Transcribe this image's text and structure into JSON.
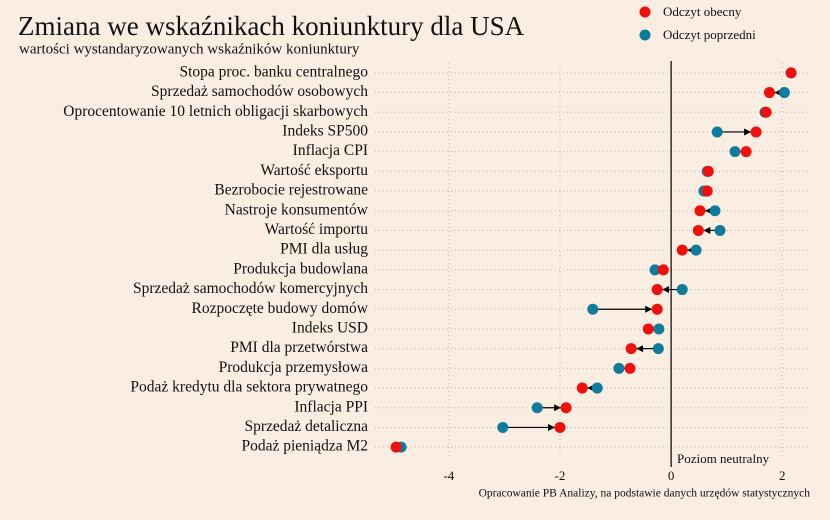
{
  "chart_data": {
    "type": "dumbbell",
    "title": "Zmiana we wskaźnikach koniunktury dla USA",
    "subtitle": "wartości wystandaryzowanych wskaźników koniunktury",
    "categories": [
      "Stopa proc. banku centralnego",
      "Sprzedaż samochodów osobowych",
      "Oprocentowanie 10 letnich obligacji skarbowych",
      "Indeks SP500",
      "Inflacja CPI",
      "Wartość eksportu",
      "Bezrobocie rejestrowane",
      "Nastroje konsumentów",
      "Wartość importu",
      "PMI dla usług",
      "Produkcja budowlana",
      "Sprzedaż samochodów komercyjnych",
      "Rozpoczęte budowy domów",
      "Indeks USD",
      "PMI dla przetwórstwa",
      "Produkcja przemysłowa",
      "Podaż kredytu dla sektora prywatnego",
      "Inflacja PPI",
      "Sprzedaż detaliczna",
      "Podaż pieniądza M2"
    ],
    "series": [
      {
        "name": "Odczyt obecny",
        "color": "#f10f0c",
        "values": [
          2.16,
          1.77,
          1.71,
          1.53,
          1.35,
          0.67,
          0.65,
          0.52,
          0.49,
          0.2,
          -0.14,
          -0.25,
          -0.25,
          -0.41,
          -0.72,
          -0.74,
          -1.6,
          -1.89,
          -2.0,
          -4.95
        ]
      },
      {
        "name": "Odczyt poprzedni",
        "color": "#0e7c9e",
        "values": [
          2.16,
          2.04,
          1.69,
          0.83,
          1.15,
          0.65,
          0.59,
          0.79,
          0.88,
          0.45,
          -0.29,
          0.2,
          -1.41,
          -0.22,
          -0.23,
          -0.94,
          -1.33,
          -2.41,
          -3.03,
          -4.86
        ]
      }
    ],
    "xlim": [
      -5.33,
      2.5
    ],
    "xticks": [
      -4,
      -2,
      0,
      2
    ],
    "annotation": "Poziom neutralny",
    "source": "Opracowanie PB Analizy, na podstawie danych urzędów statystycznych",
    "grid": true
  }
}
